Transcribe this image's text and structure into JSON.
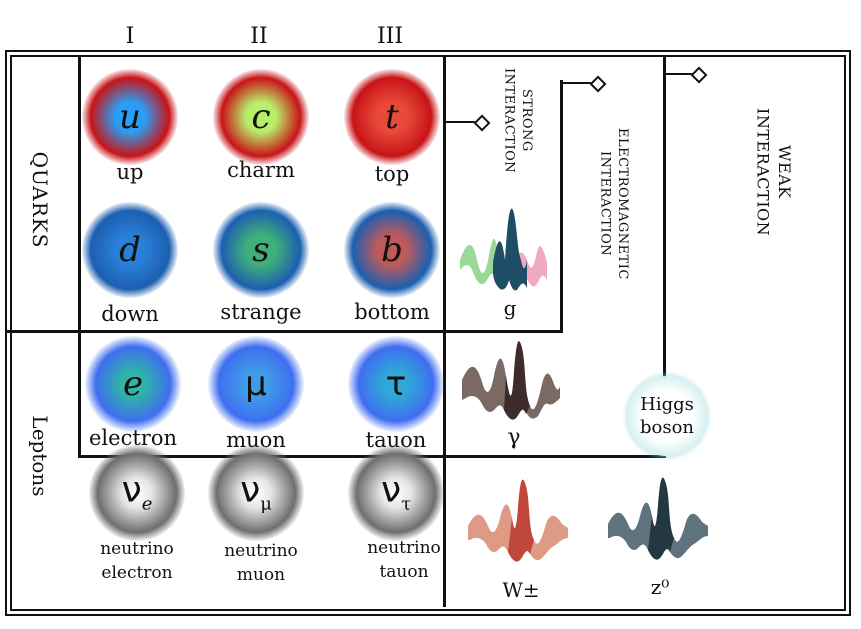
{
  "generations": [
    "I",
    "II",
    "III"
  ],
  "groups": {
    "quarks": "QUARKS",
    "leptons": "Leptons"
  },
  "quarks": [
    {
      "symbol": "u",
      "name": "up",
      "colors": [
        "#2a9df4",
        "#c81418"
      ]
    },
    {
      "symbol": "c",
      "name": "charm",
      "colors": [
        "#b8ee6a",
        "#c81418"
      ]
    },
    {
      "symbol": "t",
      "name": "top",
      "colors": [
        "#e84a3a",
        "#c81418"
      ]
    },
    {
      "symbol": "d",
      "name": "down",
      "colors": [
        "#2a7fd8",
        "#1c5fb0"
      ]
    },
    {
      "symbol": "s",
      "name": "strange",
      "colors": [
        "#3fb07a",
        "#1c5fb0"
      ]
    },
    {
      "symbol": "b",
      "name": "bottom",
      "colors": [
        "#c05a5a",
        "#1c5fb0"
      ]
    }
  ],
  "leptons": [
    {
      "symbol": "e",
      "name": "electron",
      "colors": [
        "#2fb4a8",
        "#3f6ef0"
      ]
    },
    {
      "symbol": "μ",
      "name": "muon",
      "colors": [
        "#3f9de8",
        "#3f6ef0"
      ]
    },
    {
      "symbol": "τ",
      "name": "tauon",
      "colors": [
        "#2fa8d8",
        "#3f6ef0"
      ]
    }
  ],
  "neutrinos": [
    {
      "symbol": "ν",
      "sub": "e",
      "name_line1": "neutrino",
      "name_line2": "electron"
    },
    {
      "symbol": "ν",
      "sub": "μ",
      "name_line1": "neutrino",
      "name_line2": "muon"
    },
    {
      "symbol": "ν",
      "sub": "τ",
      "name_line1": "neutrino",
      "name_line2": "tauon"
    }
  ],
  "interactions": {
    "strong": [
      "STRONG",
      "INTERACTION"
    ],
    "electromagnetic": [
      "ELECTROMAGNETIC",
      "INTERACTION"
    ],
    "weak": [
      "WEAK",
      "INTERACTION"
    ]
  },
  "bosons": {
    "gluon": "g",
    "photon": "γ",
    "w": "W±",
    "z": "z⁰",
    "higgs": [
      "Higgs",
      "boson"
    ]
  }
}
